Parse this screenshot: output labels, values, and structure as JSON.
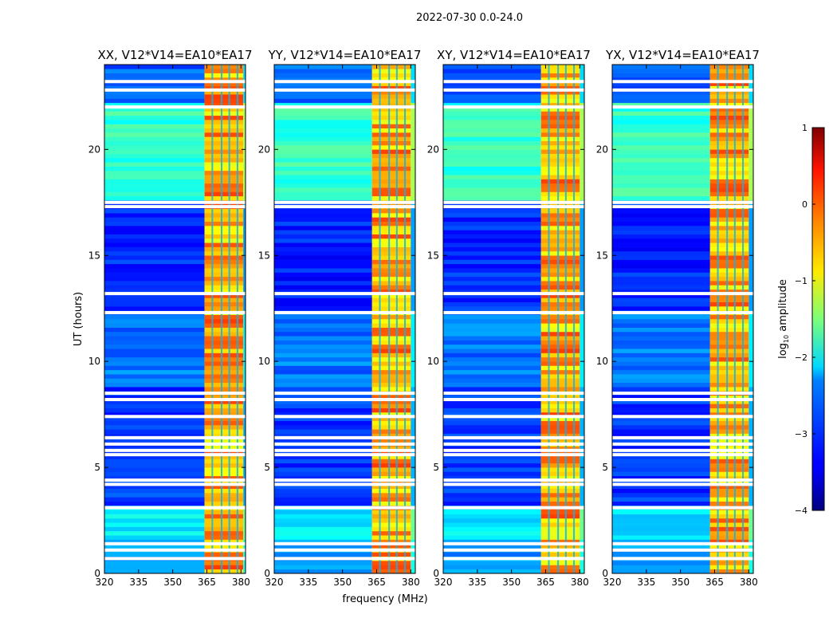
{
  "figure": {
    "suptitle": "2022-07-30 0.0-24.0",
    "ylabel": "UT (hours)",
    "xlabel": "frequency (MHz)"
  },
  "chart_data": {
    "type": "heatmap",
    "x": {
      "label": "frequency (MHz)",
      "range": [
        320,
        382
      ],
      "ticks": [
        320,
        335,
        350,
        365,
        380
      ]
    },
    "y": {
      "label": "UT (hours)",
      "range": [
        0,
        24
      ],
      "ticks": [
        0,
        5,
        10,
        15,
        20
      ]
    },
    "colorbar": {
      "label": "log10 amplitude",
      "label_base": "log",
      "label_sub": "10",
      "label_rest": " amplitude",
      "range": [
        -4,
        1
      ],
      "ticks": [
        "1",
        "0",
        "−1",
        "−2",
        "−3",
        "−4"
      ],
      "colormap": "jet"
    },
    "panels": [
      {
        "title": "XX, V12*V14=EA10*EA17",
        "bright_band_mhz": [
          364,
          381
        ]
      },
      {
        "title": "YY, V12*V14=EA10*EA17",
        "bright_band_mhz": [
          363,
          380
        ]
      },
      {
        "title": "XY, V12*V14=EA10*EA17",
        "bright_band_mhz": [
          363,
          380
        ]
      },
      {
        "title": "YX, V12*V14=EA10*EA17",
        "bright_band_mhz": [
          363,
          380
        ]
      }
    ],
    "flagged_time_hours": [
      0.7,
      1.1,
      1.4,
      3.1,
      4.2,
      4.4,
      5.6,
      5.8,
      6.1,
      6.4,
      7.4,
      8.2,
      8.5,
      12.3,
      13.2,
      17.3,
      17.5,
      22.0,
      22.8,
      23.2
    ],
    "approx_mean_log_amplitude": [
      {
        "ut_range": [
          0,
          1.5
        ],
        "value": -2.6
      },
      {
        "ut_range": [
          1.5,
          3.2
        ],
        "value": -2.2
      },
      {
        "ut_range": [
          3.2,
          8.7
        ],
        "value": -3.1
      },
      {
        "ut_range": [
          8.7,
          12.3
        ],
        "value": -2.8
      },
      {
        "ut_range": [
          12.3,
          17.4
        ],
        "value": -3.2
      },
      {
        "ut_range": [
          17.6,
          22.1
        ],
        "value": -1.9
      },
      {
        "ut_range": [
          22.1,
          24
        ],
        "value": -2.9
      }
    ],
    "bright_band_log_amplitude": [
      -1.0,
      0.1
    ]
  }
}
